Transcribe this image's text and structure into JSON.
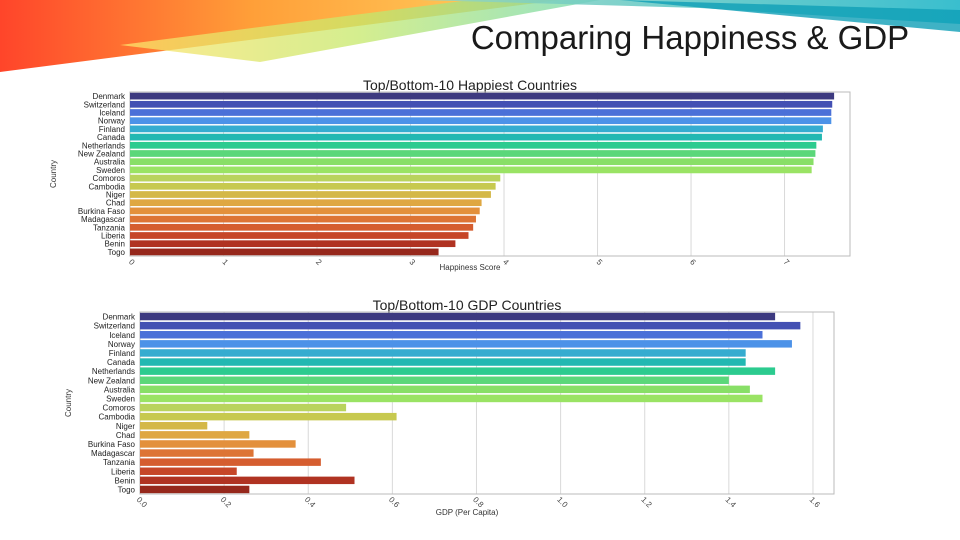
{
  "slide": {
    "title": "Comparing Happiness & GDP"
  },
  "colors": [
    "#3d3a80",
    "#4350b3",
    "#4b70d8",
    "#4c92e8",
    "#35acd0",
    "#22b8b2",
    "#2ccb8f",
    "#5bd77a",
    "#88df67",
    "#9ae364",
    "#b9d35d",
    "#c7c94f",
    "#d4b848",
    "#dfa742",
    "#e3903c",
    "#dd7435",
    "#d55d2f",
    "#c64628",
    "#b03322",
    "#96281c"
  ],
  "chart_data": [
    {
      "type": "bar",
      "orientation": "horizontal",
      "title": "Top/Bottom-10 Happiest Countries",
      "xlabel": "Happiness Score",
      "ylabel": "Country",
      "categories": [
        "Denmark",
        "Switzerland",
        "Iceland",
        "Norway",
        "Finland",
        "Canada",
        "Netherlands",
        "New Zealand",
        "Australia",
        "Sweden",
        "Comoros",
        "Cambodia",
        "Niger",
        "Chad",
        "Burkina Faso",
        "Madagascar",
        "Tanzania",
        "Liberia",
        "Benin",
        "Togo"
      ],
      "values": [
        7.53,
        7.51,
        7.5,
        7.5,
        7.41,
        7.4,
        7.34,
        7.33,
        7.31,
        7.29,
        3.96,
        3.91,
        3.86,
        3.76,
        3.74,
        3.7,
        3.67,
        3.62,
        3.48,
        3.3
      ],
      "xlim": [
        0,
        7.7
      ],
      "xticks": [
        0,
        1,
        2,
        3,
        4,
        5,
        6,
        7
      ],
      "xtick_labels": [
        "0",
        "1",
        "2",
        "3",
        "4",
        "5",
        "6",
        "7"
      ],
      "grid": true
    },
    {
      "type": "bar",
      "orientation": "horizontal",
      "title": "Top/Bottom-10 GDP Countries",
      "xlabel": "GDP (Per Capita)",
      "ylabel": "Country",
      "categories": [
        "Denmark",
        "Switzerland",
        "Iceland",
        "Norway",
        "Finland",
        "Canada",
        "Netherlands",
        "New Zealand",
        "Australia",
        "Sweden",
        "Comoros",
        "Cambodia",
        "Niger",
        "Chad",
        "Burkina Faso",
        "Madagascar",
        "Tanzania",
        "Liberia",
        "Benin",
        "Togo"
      ],
      "values": [
        1.51,
        1.57,
        1.48,
        1.55,
        1.44,
        1.44,
        1.51,
        1.4,
        1.45,
        1.48,
        0.49,
        0.61,
        0.16,
        0.26,
        0.37,
        0.27,
        0.43,
        0.23,
        0.51,
        0.26
      ],
      "xlim": [
        0,
        1.65
      ],
      "xticks": [
        0,
        0.2,
        0.4,
        0.6,
        0.8,
        1.0,
        1.2,
        1.4,
        1.6
      ],
      "xtick_labels": [
        "0.0",
        "0.2",
        "0.4",
        "0.6",
        "0.8",
        "1.0",
        "1.2",
        "1.4",
        "1.6"
      ],
      "grid": true
    }
  ]
}
